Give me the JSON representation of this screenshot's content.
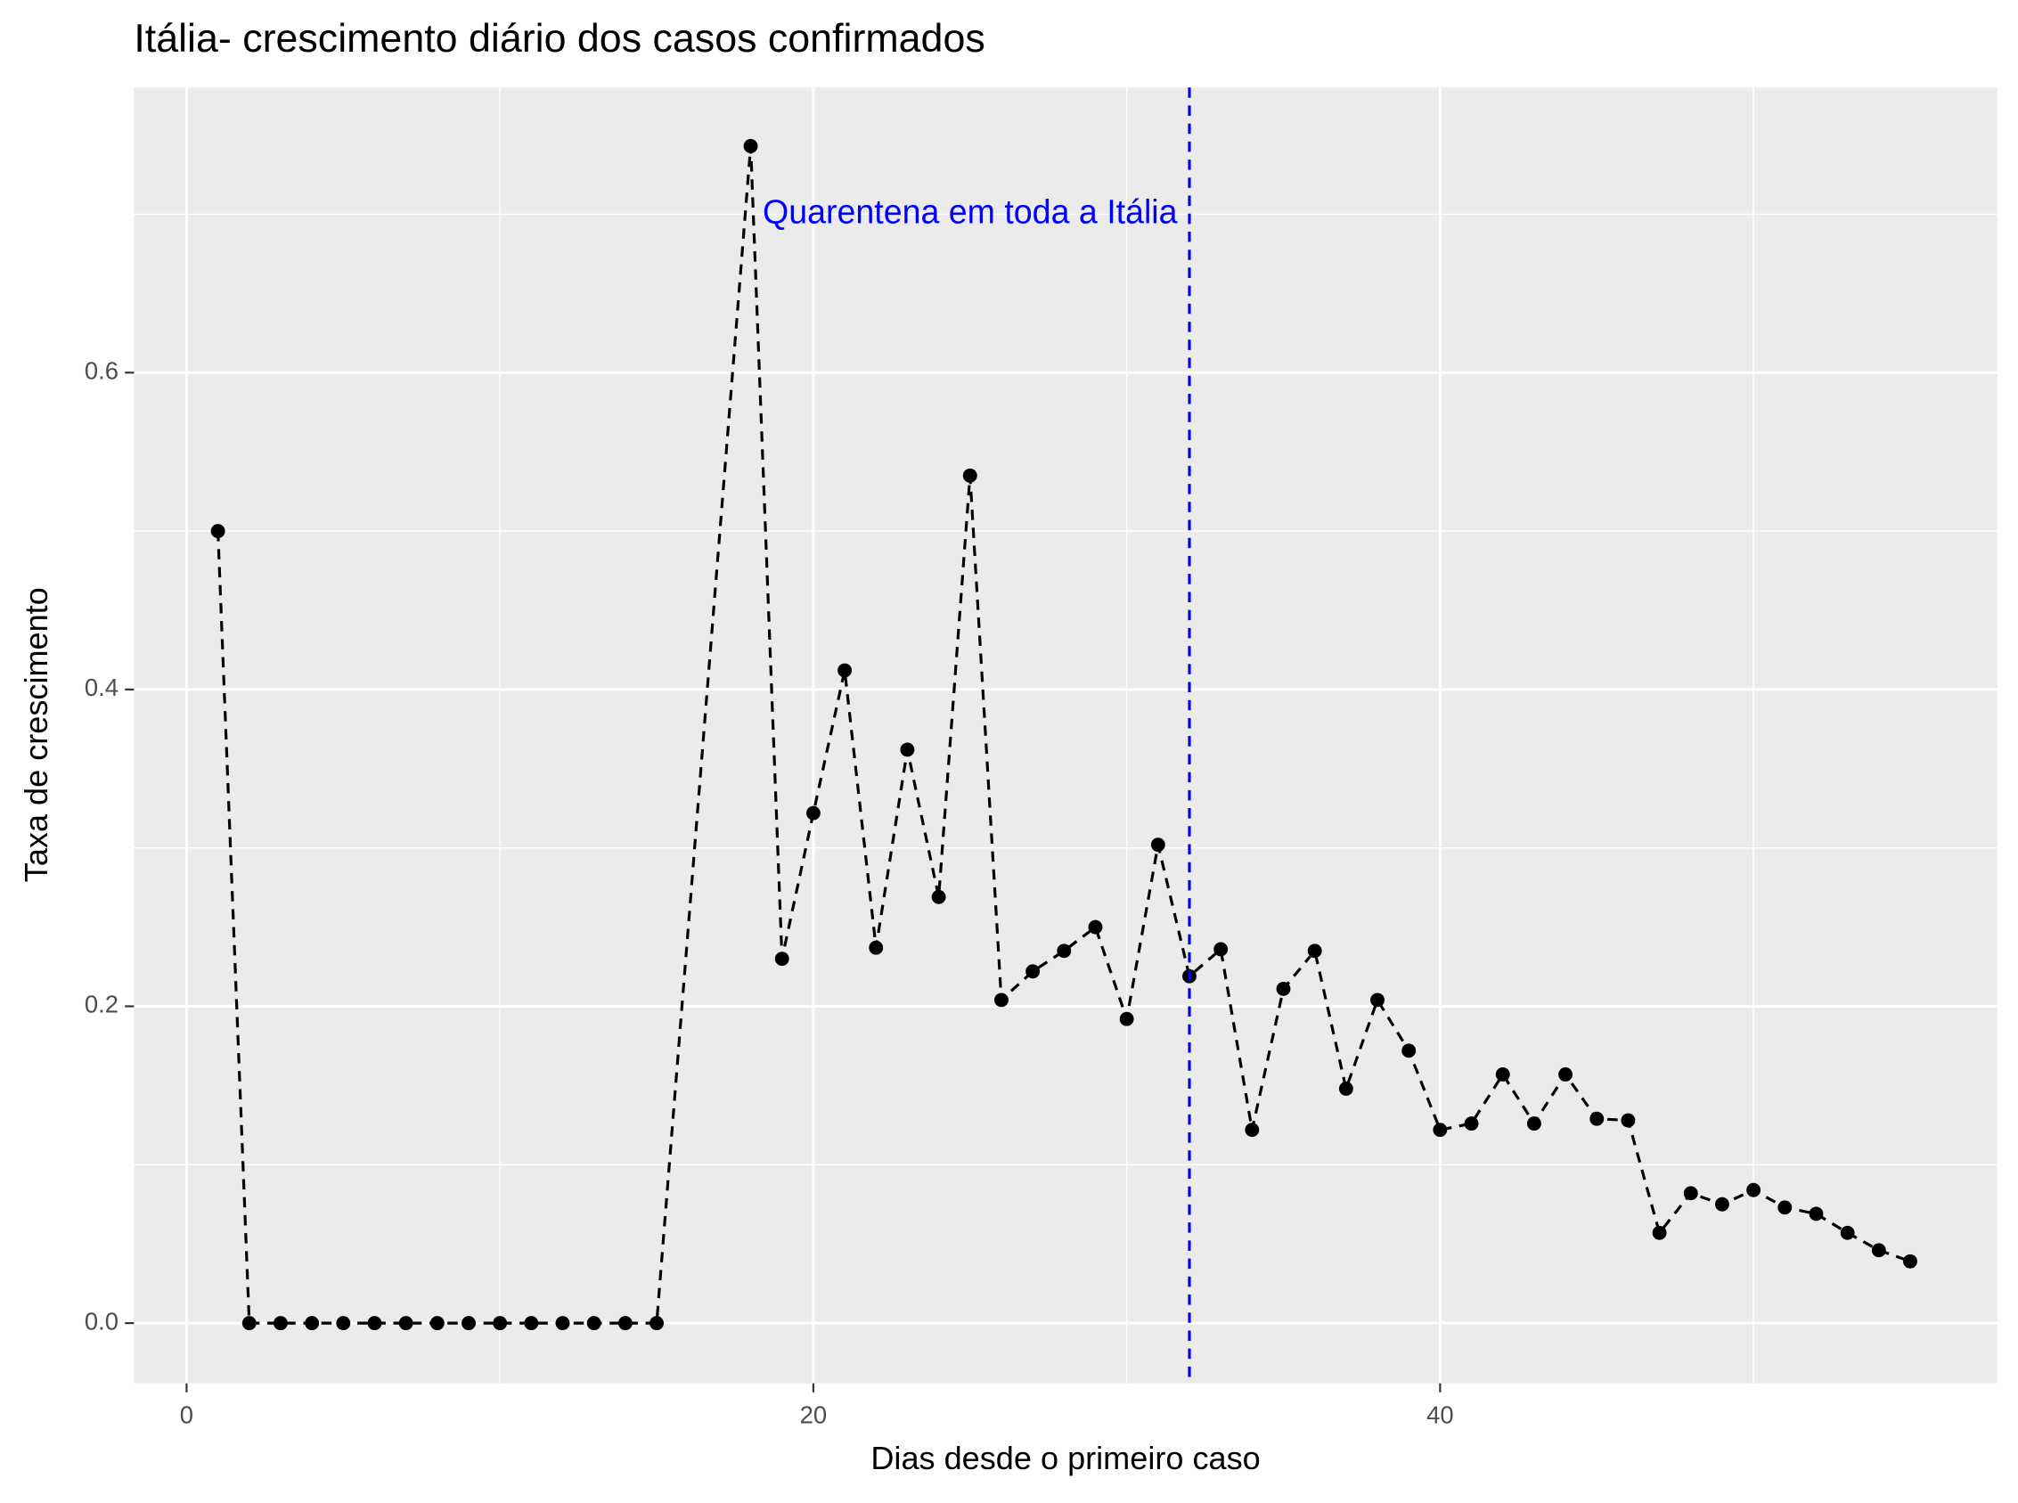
{
  "chart_data": {
    "type": "line",
    "title": "Itália- crescimento diário dos casos confirmados",
    "x_label": "Dias desde o primeiro caso",
    "y_label": "Taxa de crescimento",
    "x": [
      1,
      2,
      3,
      4,
      5,
      6,
      7,
      8,
      9,
      10,
      11,
      12,
      13,
      14,
      15,
      18,
      19,
      20,
      21,
      22,
      23,
      24,
      25,
      26,
      27,
      28,
      29,
      30,
      31,
      32,
      33,
      34,
      35,
      36,
      37,
      38,
      39,
      40,
      41,
      42,
      43,
      44,
      45,
      46,
      47,
      48,
      49,
      50,
      51,
      52,
      53,
      54,
      55
    ],
    "values": [
      0.5,
      0,
      0,
      0,
      0,
      0,
      0,
      0,
      0,
      0,
      0,
      0,
      0,
      0,
      0,
      0.743,
      0.23,
      0.322,
      0.412,
      0.237,
      0.362,
      0.269,
      0.535,
      0.204,
      0.222,
      0.235,
      0.25,
      0.192,
      0.302,
      0.219,
      0.236,
      0.122,
      0.211,
      0.235,
      0.148,
      0.204,
      0.172,
      0.122,
      0.126,
      0.157,
      0.126,
      0.157,
      0.129,
      0.128,
      0.057,
      0.082,
      0.075,
      0.084,
      0.073,
      0.069,
      0.057,
      0.046,
      0.039
    ],
    "color": "#000000",
    "line_style": "dashed",
    "xlim": [
      -1.68,
      57.78
    ],
    "ylim": [
      -0.038,
      0.78
    ],
    "xticks": [
      0,
      20,
      40
    ],
    "yticks": [
      {
        "value": 0,
        "label": "0.0"
      },
      0.2,
      0.4,
      0.6
    ],
    "xminor": [
      10,
      30,
      50
    ],
    "yminor": [
      0.1,
      0.3,
      0.5,
      0.7
    ],
    "grid": true,
    "vline": {
      "x": 32,
      "color": "#0000ff"
    },
    "annotation": {
      "text": "Quarentena em toda a Itália",
      "x": 25,
      "y": 0.7,
      "color": "#0000ff"
    }
  }
}
